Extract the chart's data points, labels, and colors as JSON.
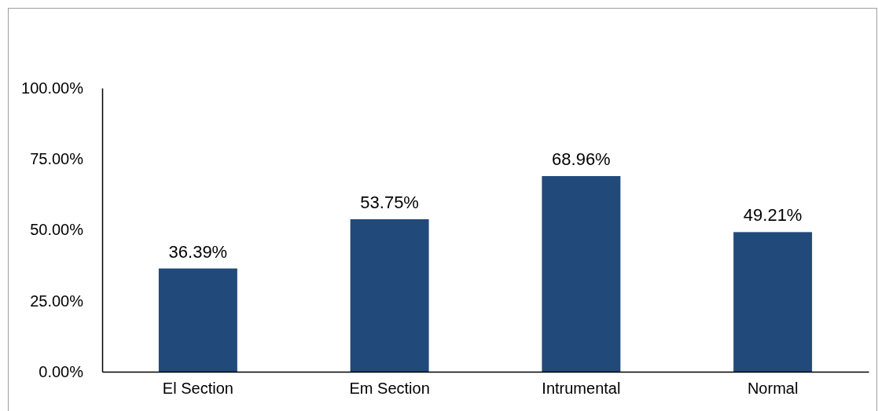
{
  "chart_data": {
    "type": "bar",
    "categories": [
      "El Section",
      "Em Section",
      "Intrumental",
      "Normal"
    ],
    "values": [
      36.39,
      53.75,
      68.96,
      49.21
    ],
    "color": "#214a7b",
    "value_labels": [
      "36.39%",
      "53.75%",
      "68.96%",
      "49.21%"
    ],
    "ylim": [
      0,
      100
    ],
    "yticks": [
      {
        "value": 0,
        "label": "0.00%"
      },
      {
        "value": 25,
        "label": "25.00%"
      },
      {
        "value": 50,
        "label": "50.00%"
      },
      {
        "value": 75,
        "label": "75.00%"
      },
      {
        "value": 100,
        "label": "100.00%"
      }
    ],
    "grid": false
  }
}
